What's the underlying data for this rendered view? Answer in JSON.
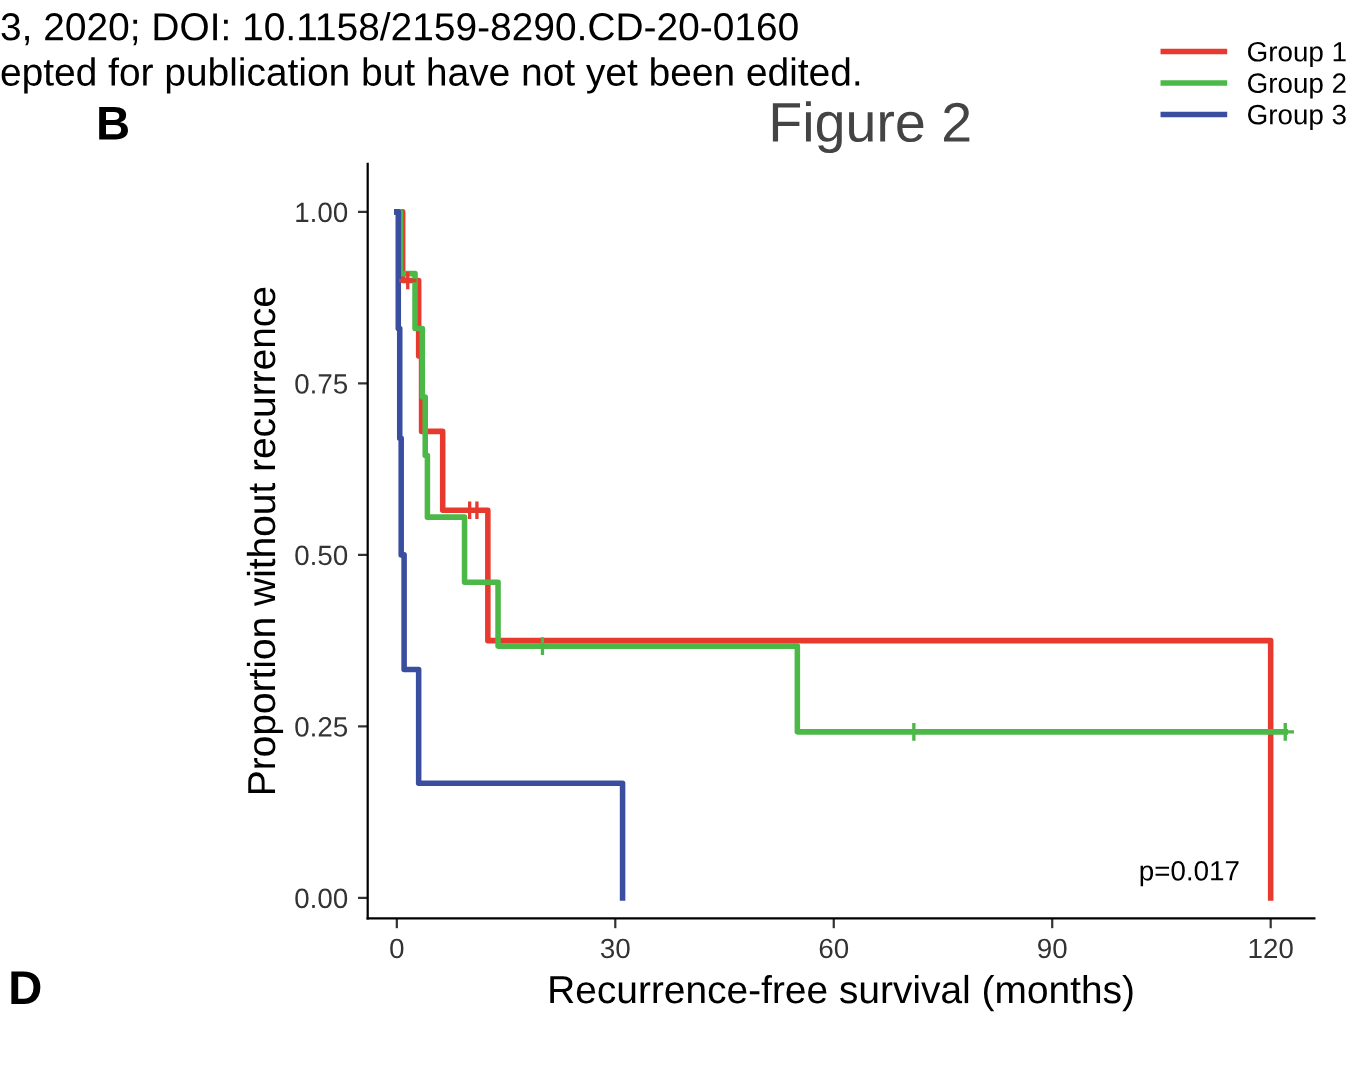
{
  "chart_data": {
    "type": "step",
    "xlabel": "Recurrence-free survival (months)",
    "ylabel": "Proportion without recurrence",
    "xlim": [
      -4,
      126
    ],
    "ylim": [
      -0.03,
      1.07
    ],
    "xticks": [
      0,
      30,
      60,
      90,
      120
    ],
    "yticks": [
      {
        "value": 0,
        "label": "0.00"
      },
      {
        "value": 0.25,
        "label": "0.25"
      },
      {
        "value": 0.5,
        "label": "0.50"
      },
      {
        "value": 0.75,
        "label": "0.75"
      },
      {
        "value": 1,
        "label": "1.00"
      }
    ],
    "grid": false,
    "legend": "top right",
    "line_style": "solid",
    "marker": "none",
    "series": [
      {
        "name": "Group 1",
        "color": "#e8392f",
        "x": [
          0,
          0.8,
          3,
          3.4,
          6.3,
          12.5,
          120,
          120
        ],
        "values": [
          1.0,
          0.9,
          0.79,
          0.68,
          0.565,
          0.375,
          0.375,
          0
        ]
      },
      {
        "name": "Group 2",
        "color": "#4cb848",
        "x": [
          0,
          0.5,
          2.5,
          3.5,
          3.9,
          4.2,
          9.3,
          13.9,
          55,
          122
        ],
        "values": [
          1.0,
          0.91,
          0.83,
          0.73,
          0.645,
          0.555,
          0.46,
          0.367,
          0.242,
          0.242
        ]
      },
      {
        "name": "Group 3",
        "color": "#3a4ea0",
        "x": [
          0,
          0.2,
          0.4,
          0.6,
          1.0,
          3.0,
          31,
          31
        ],
        "values": [
          1.0,
          0.83,
          0.67,
          0.5,
          0.333,
          0.167,
          0.167,
          0
        ]
      },
      {
        "type": "scatter",
        "marker": "cross",
        "color": "#e8392f",
        "x": [
          1.5,
          10,
          11
        ],
        "values": [
          0.9,
          0.565,
          0.565
        ]
      },
      {
        "type": "scatter",
        "marker": "cross",
        "color": "#4cb848",
        "x": [
          20,
          71,
          122
        ],
        "values": [
          0.367,
          0.242,
          0.242
        ]
      }
    ],
    "annotations": [
      "3, 2020; DOI: 10.1158/2159-8290.CD-20-0160",
      "epted for publication but have not yet been edited.",
      "B",
      "Figure 2",
      "D",
      "p=0.017"
    ]
  }
}
